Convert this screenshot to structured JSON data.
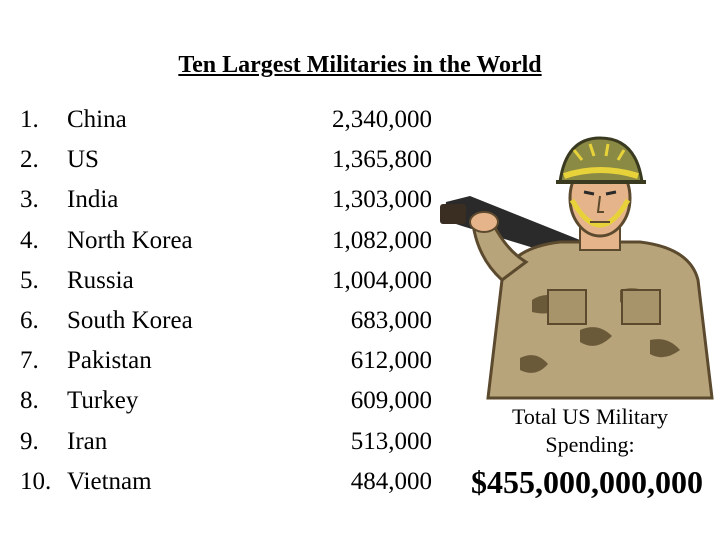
{
  "title": "Ten Largest Militaries in the World",
  "rankings": [
    {
      "rank": "1.",
      "country": "China",
      "troops": "2,340,000"
    },
    {
      "rank": "2.",
      "country": "US",
      "troops": "1,365,800"
    },
    {
      "rank": "3.",
      "country": "India",
      "troops": "1,303,000"
    },
    {
      "rank": "4.",
      "country": "North Korea",
      "troops": "1,082,000"
    },
    {
      "rank": "5.",
      "country": "Russia",
      "troops": "1,004,000"
    },
    {
      "rank": "6.",
      "country": "South Korea",
      "troops": "683,000"
    },
    {
      "rank": "7.",
      "country": "Pakistan",
      "troops": "612,000"
    },
    {
      "rank": "8.",
      "country": "Turkey",
      "troops": "609,000"
    },
    {
      "rank": "9.",
      "country": "Iran",
      "troops": "513,000"
    },
    {
      "rank": "10.",
      "country": "Vietnam",
      "troops": "484,000"
    }
  ],
  "spending": {
    "label_line1": "Total US Military",
    "label_line2": "Spending:",
    "value": "$455,000,000,000"
  },
  "illustration": {
    "icon": "soldier-clipart-icon",
    "colors": {
      "helmet": "#8a8a44",
      "helmet_band": "#e8d23a",
      "skin": "#e6b48a",
      "uniform": "#b8a47a",
      "uniform_dark": "#6b5a3a",
      "rifle": "#2a2a2a",
      "shadow": "#5c4a2e"
    }
  }
}
